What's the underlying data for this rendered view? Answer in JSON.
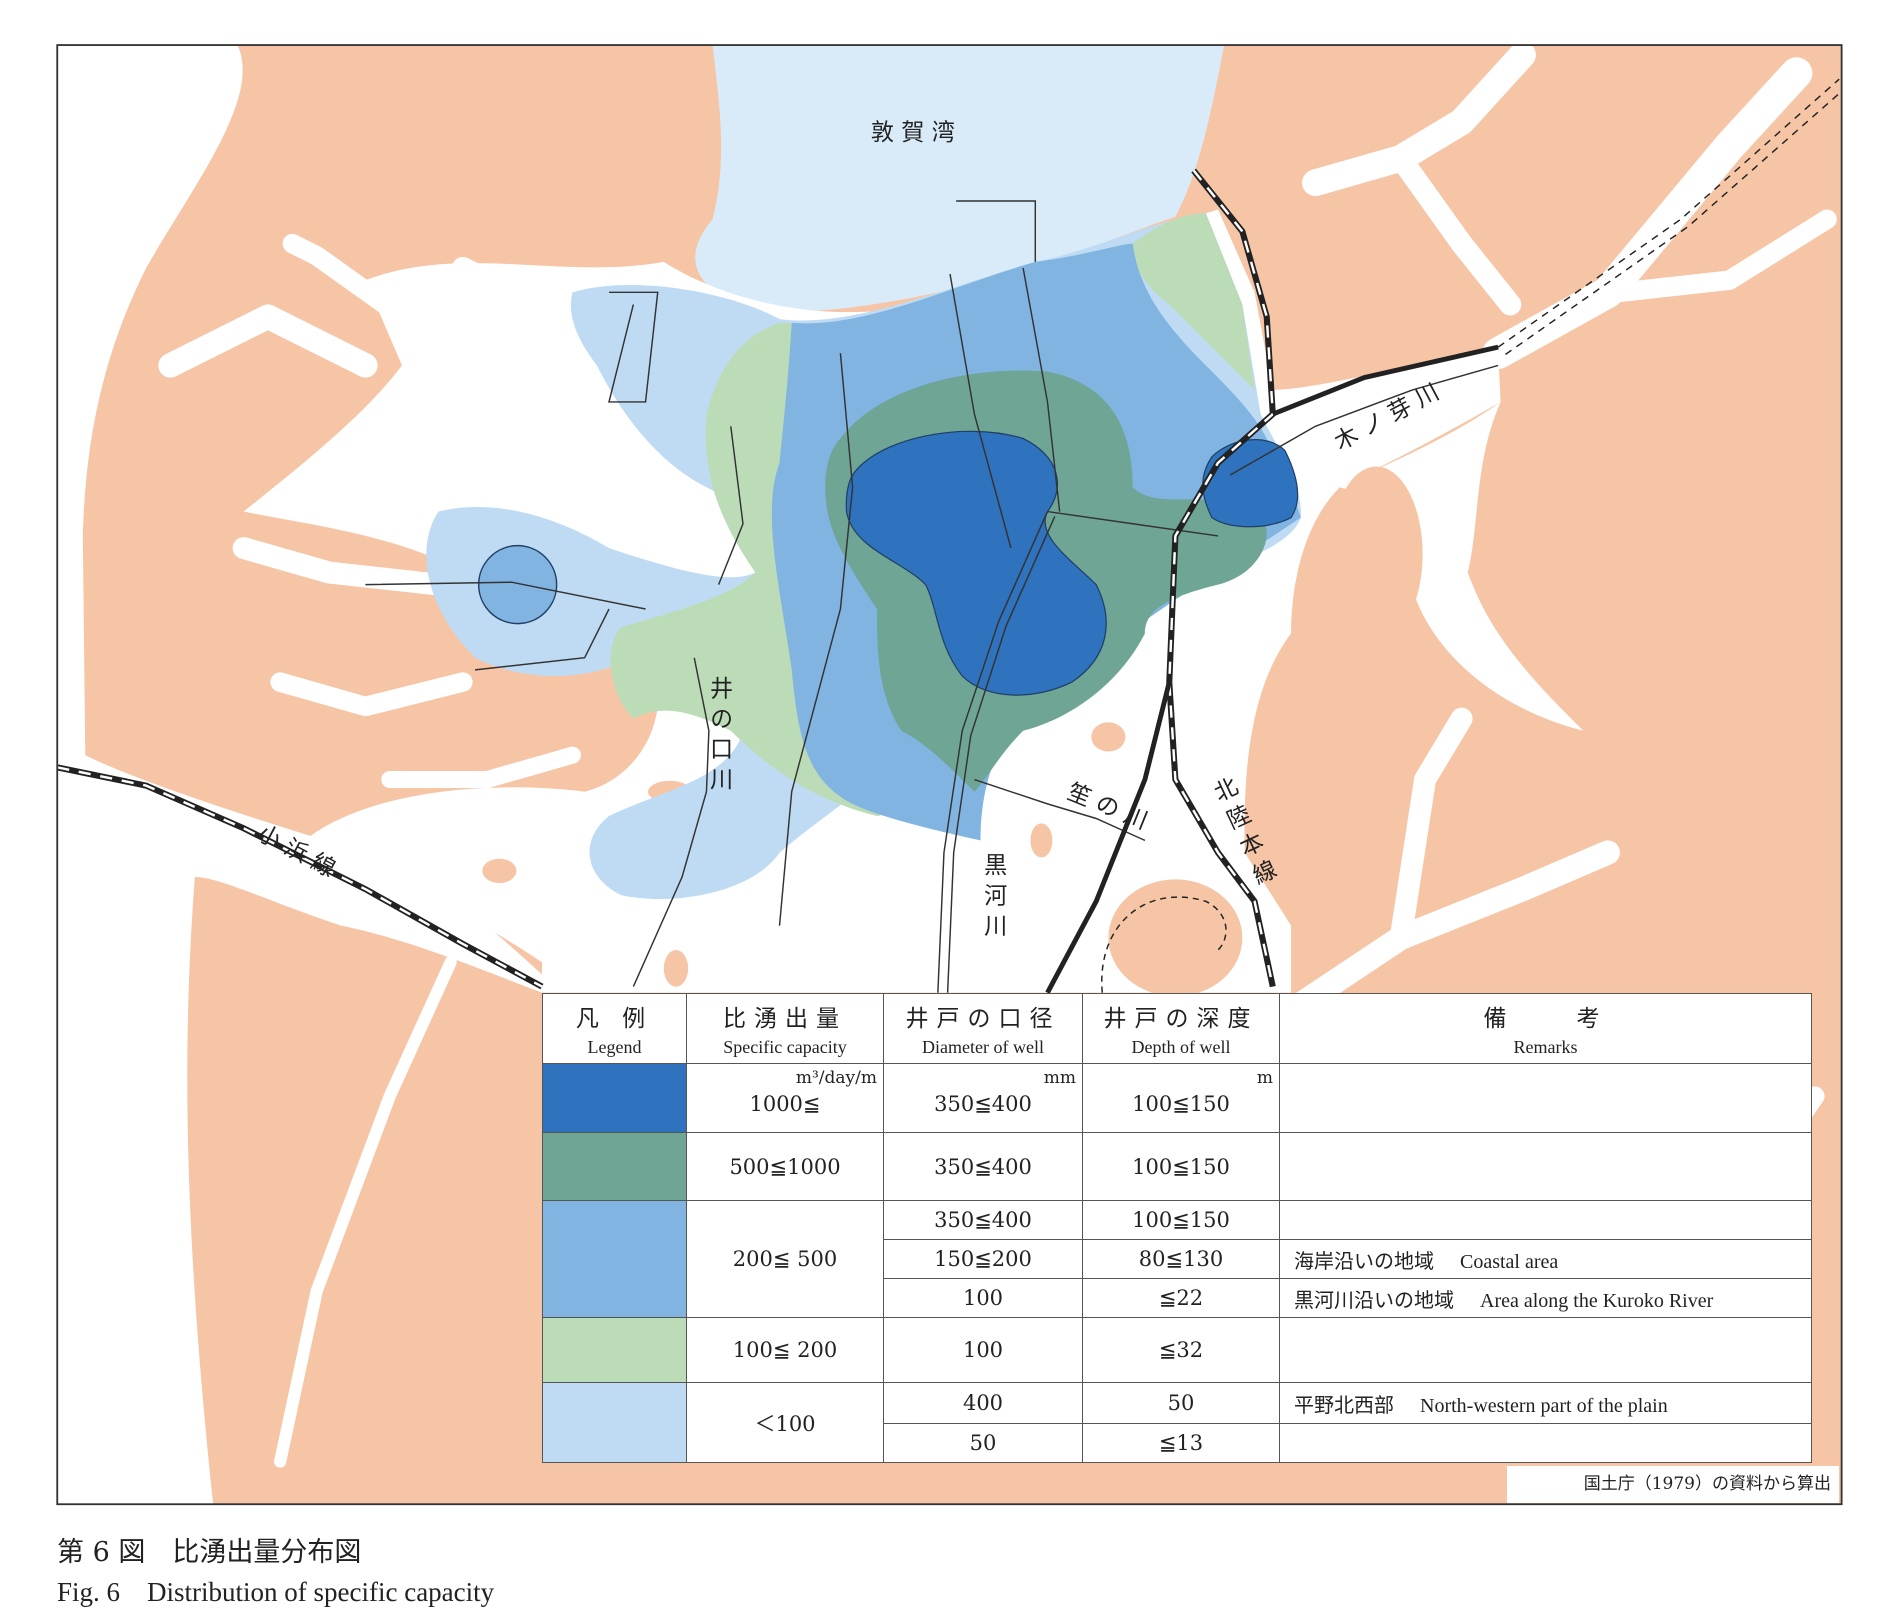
{
  "colors": {
    "land": "#f6c5a6",
    "sea": "#d9ebf8",
    "class_1000_plus": "#2f72bd",
    "class_500_1000": "#6fa595",
    "class_200_500": "#82b4e2",
    "class_100_200": "#bcdcb8",
    "class_lt_100": "#bedbf3"
  },
  "map": {
    "labels": {
      "bay": "敦賀湾",
      "kinome_river": "木ノ芽川",
      "inokuchi_river": "井の口川",
      "sasanokawa_river": "笙の川",
      "kuroko_river": "黒河川",
      "hokuriku_line": "北陸本線",
      "obama_line": "小浜線"
    }
  },
  "legend": {
    "headers": [
      {
        "ja": "凡 例",
        "en": "Legend"
      },
      {
        "ja": "比湧出量",
        "en": "Specific capacity"
      },
      {
        "ja": "井戸の口径",
        "en": "Diameter of well"
      },
      {
        "ja": "井戸の深度",
        "en": "Depth of well"
      },
      {
        "ja": "備　　考",
        "en": "Remarks"
      }
    ],
    "units": {
      "capacity": "m³/day/m",
      "diameter": "mm",
      "depth": "m"
    },
    "rows": [
      {
        "capacity": "1000≦",
        "sub": [
          {
            "diameter": "350≦400",
            "depth": "100≦150",
            "remarks_ja": "",
            "remarks_en": ""
          }
        ]
      },
      {
        "capacity": "500≦1000",
        "sub": [
          {
            "diameter": "350≦400",
            "depth": "100≦150",
            "remarks_ja": "",
            "remarks_en": ""
          }
        ]
      },
      {
        "capacity": "200≦ 500",
        "sub": [
          {
            "diameter": "350≦400",
            "depth": "100≦150",
            "remarks_ja": "",
            "remarks_en": ""
          },
          {
            "diameter": "150≦200",
            "depth": "80≦130",
            "remarks_ja": "海岸沿いの地域",
            "remarks_en": "Coastal area"
          },
          {
            "diameter": "100",
            "depth": "≦22",
            "remarks_ja": "黒河川沿いの地域",
            "remarks_en": "Area along the Kuroko River"
          }
        ]
      },
      {
        "capacity": "100≦ 200",
        "sub": [
          {
            "diameter": "100",
            "depth": "≦32",
            "remarks_ja": "",
            "remarks_en": ""
          }
        ]
      },
      {
        "capacity": "＜100",
        "sub": [
          {
            "diameter": "400",
            "depth": "50",
            "remarks_ja": "平野北西部",
            "remarks_en": "North-western part of the plain"
          },
          {
            "diameter": "50",
            "depth": "≦13",
            "remarks_ja": "",
            "remarks_en": ""
          }
        ]
      }
    ]
  },
  "source_note": "国土庁（1979）の資料から算出",
  "caption": {
    "ja": "第 6 図　比湧出量分布図",
    "en": "Fig. 6　Distribution of specific capacity"
  }
}
